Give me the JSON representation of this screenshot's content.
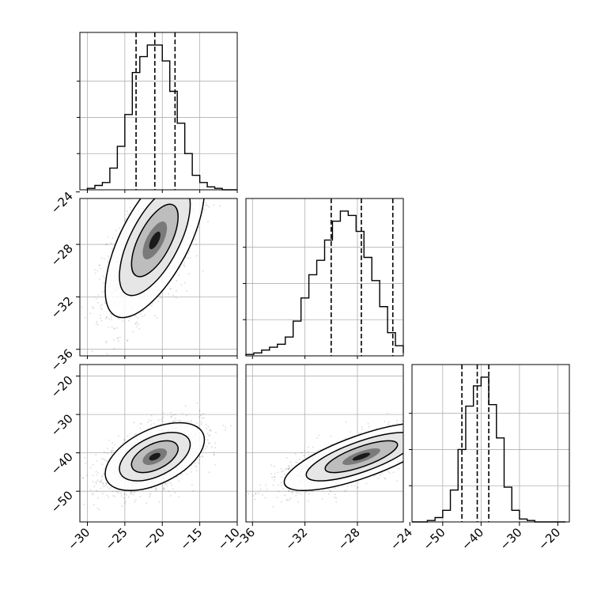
{
  "chart_data": {
    "type": "corner",
    "parameters": [
      "",
      "",
      ""
    ],
    "axis_ranges": [
      [
        -31,
        -10
      ],
      [
        -36.5,
        -24.5
      ],
      [
        -58,
        -17
      ]
    ],
    "tick_labels": {
      "p0": [
        "−30",
        "−25",
        "−20",
        "−15",
        "−10"
      ],
      "p1": [
        "−24",
        "−28",
        "−32",
        "−36"
      ],
      "p1_bottom": [
        "−36",
        "−32",
        "−28",
        "−24"
      ],
      "p2": [
        "−20",
        "−30",
        "−40",
        "−50"
      ],
      "p2_bottom": [
        "−50",
        "−40",
        "−30",
        "−20"
      ]
    },
    "ticks": {
      "p0": [
        -30,
        -25,
        -20,
        -15,
        -10
      ],
      "p1": [
        -36,
        -32,
        -28,
        -24
      ],
      "p2": [
        -50,
        -40,
        -30,
        -20
      ]
    },
    "quantiles": {
      "p0": [
        -23.5,
        -21.0,
        -18.3
      ],
      "p1": [
        -30.0,
        -27.7,
        -25.3
      ],
      "p2": [
        -45.0,
        -41.0,
        -38.0
      ]
    },
    "histograms": {
      "p0": {
        "edges_start": -30,
        "bin_width": 1.0,
        "counts": [
          0.01,
          0.03,
          0.05,
          0.15,
          0.3,
          0.52,
          0.81,
          0.92,
          1.0,
          1.0,
          0.89,
          0.68,
          0.46,
          0.25,
          0.1,
          0.05,
          0.02,
          0.01,
          0,
          0
        ]
      },
      "p1": {
        "edges_start": -36.5,
        "bin_width": 0.6,
        "counts": [
          0.01,
          0.02,
          0.04,
          0.06,
          0.08,
          0.13,
          0.24,
          0.4,
          0.56,
          0.66,
          0.8,
          0.93,
          1.0,
          0.97,
          0.86,
          0.68,
          0.52,
          0.34,
          0.16,
          0.07,
          0.02
        ]
      },
      "p2": {
        "edges_start": -58,
        "bin_width": 2.0,
        "counts": [
          0,
          0,
          0.01,
          0.03,
          0.08,
          0.22,
          0.5,
          0.8,
          0.94,
          1.0,
          0.81,
          0.58,
          0.24,
          0.08,
          0.02,
          0.01,
          0,
          0,
          0,
          0
        ]
      }
    },
    "pairs": [
      {
        "x": "p0",
        "y": "p1",
        "cx": -21.0,
        "cy": -27.7,
        "sx": 2.7,
        "sy": 2.4,
        "rho": 0.65
      },
      {
        "x": "p0",
        "y": "p2",
        "cx": -21.0,
        "cy": -41.0,
        "sx": 2.7,
        "sy": 3.6,
        "rho": 0.5
      },
      {
        "x": "p1",
        "y": "p2",
        "cx": -27.7,
        "cy": -41.0,
        "sx": 2.4,
        "sy": 3.6,
        "rho": 0.75
      }
    ],
    "grid": true
  }
}
